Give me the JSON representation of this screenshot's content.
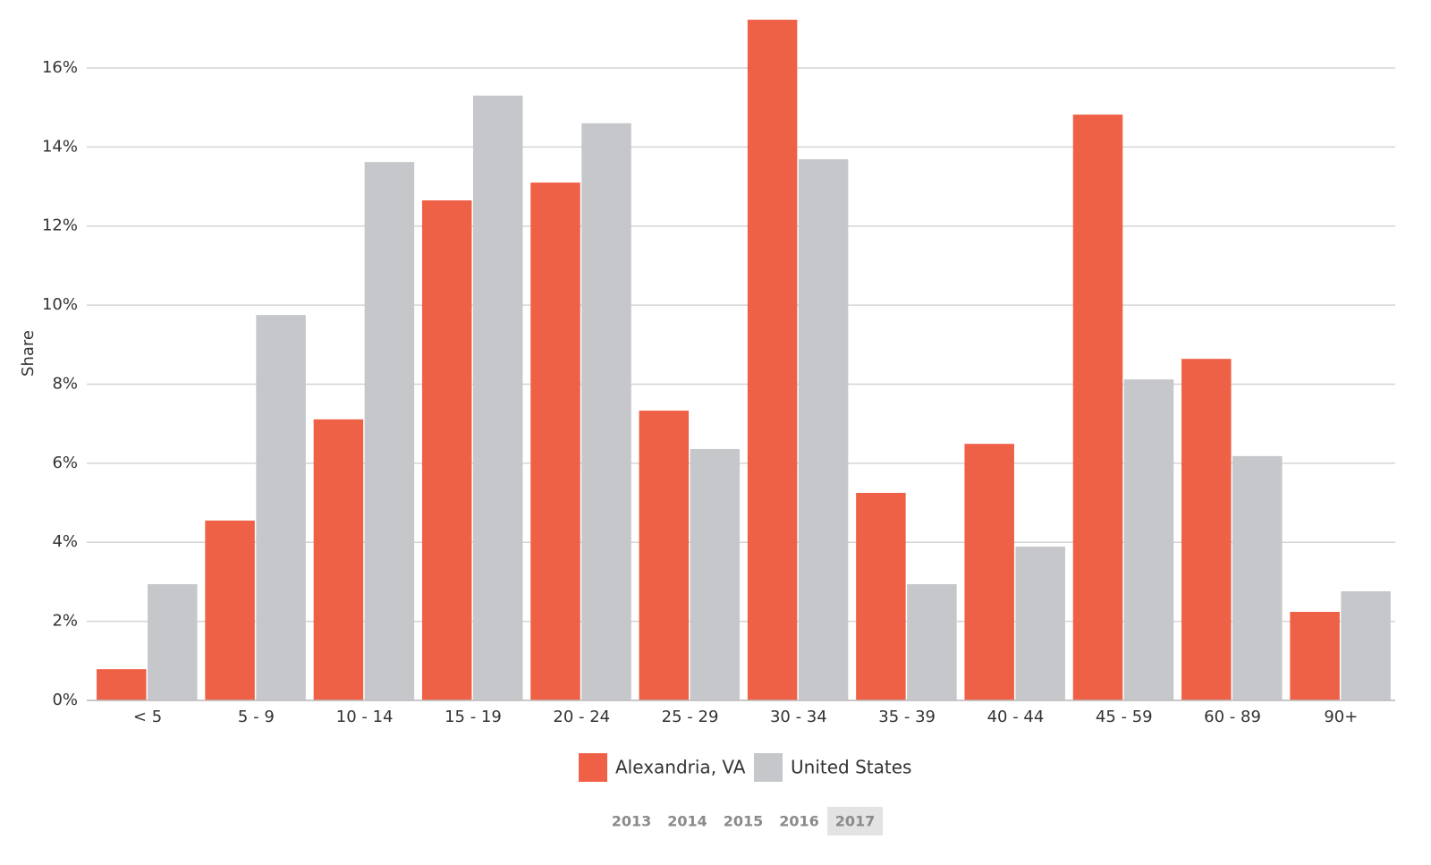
{
  "chart_data": {
    "type": "bar",
    "y_axis_label": "Share",
    "categories": [
      "< 5",
      "5 - 9",
      "10 - 14",
      "15 - 19",
      "20 - 24",
      "25 - 29",
      "30 - 34",
      "35 - 39",
      "40 - 44",
      "45 - 59",
      "60 - 89",
      "90+"
    ],
    "series": [
      {
        "name": "Alexandria, VA",
        "color": "#ee6146",
        "values": [
          0.79,
          4.55,
          7.11,
          12.65,
          13.1,
          7.33,
          17.22,
          5.25,
          6.49,
          14.82,
          8.64,
          2.24
        ]
      },
      {
        "name": "United States",
        "color": "#c6c7ca",
        "values": [
          2.94,
          9.75,
          13.62,
          15.3,
          14.6,
          6.36,
          13.69,
          2.94,
          3.89,
          8.12,
          6.18,
          2.76
        ]
      }
    ],
    "ylim": [
      0,
      17.3
    ],
    "yticks": [
      {
        "value": 0,
        "label": "0%"
      },
      {
        "value": 2,
        "label": "2%"
      },
      {
        "value": 4,
        "label": "4%"
      },
      {
        "value": 6,
        "label": "6%"
      },
      {
        "value": 8,
        "label": "8%"
      },
      {
        "value": 10,
        "label": "10%"
      },
      {
        "value": 12,
        "label": "12%"
      },
      {
        "value": 14,
        "label": "14%"
      },
      {
        "value": 16,
        "label": "16%"
      }
    ],
    "grid": true
  },
  "year_selector": {
    "years": [
      {
        "label": "2013"
      },
      {
        "label": "2014"
      },
      {
        "label": "2015"
      },
      {
        "label": "2016"
      },
      {
        "label": "2017",
        "selected": true
      }
    ]
  }
}
